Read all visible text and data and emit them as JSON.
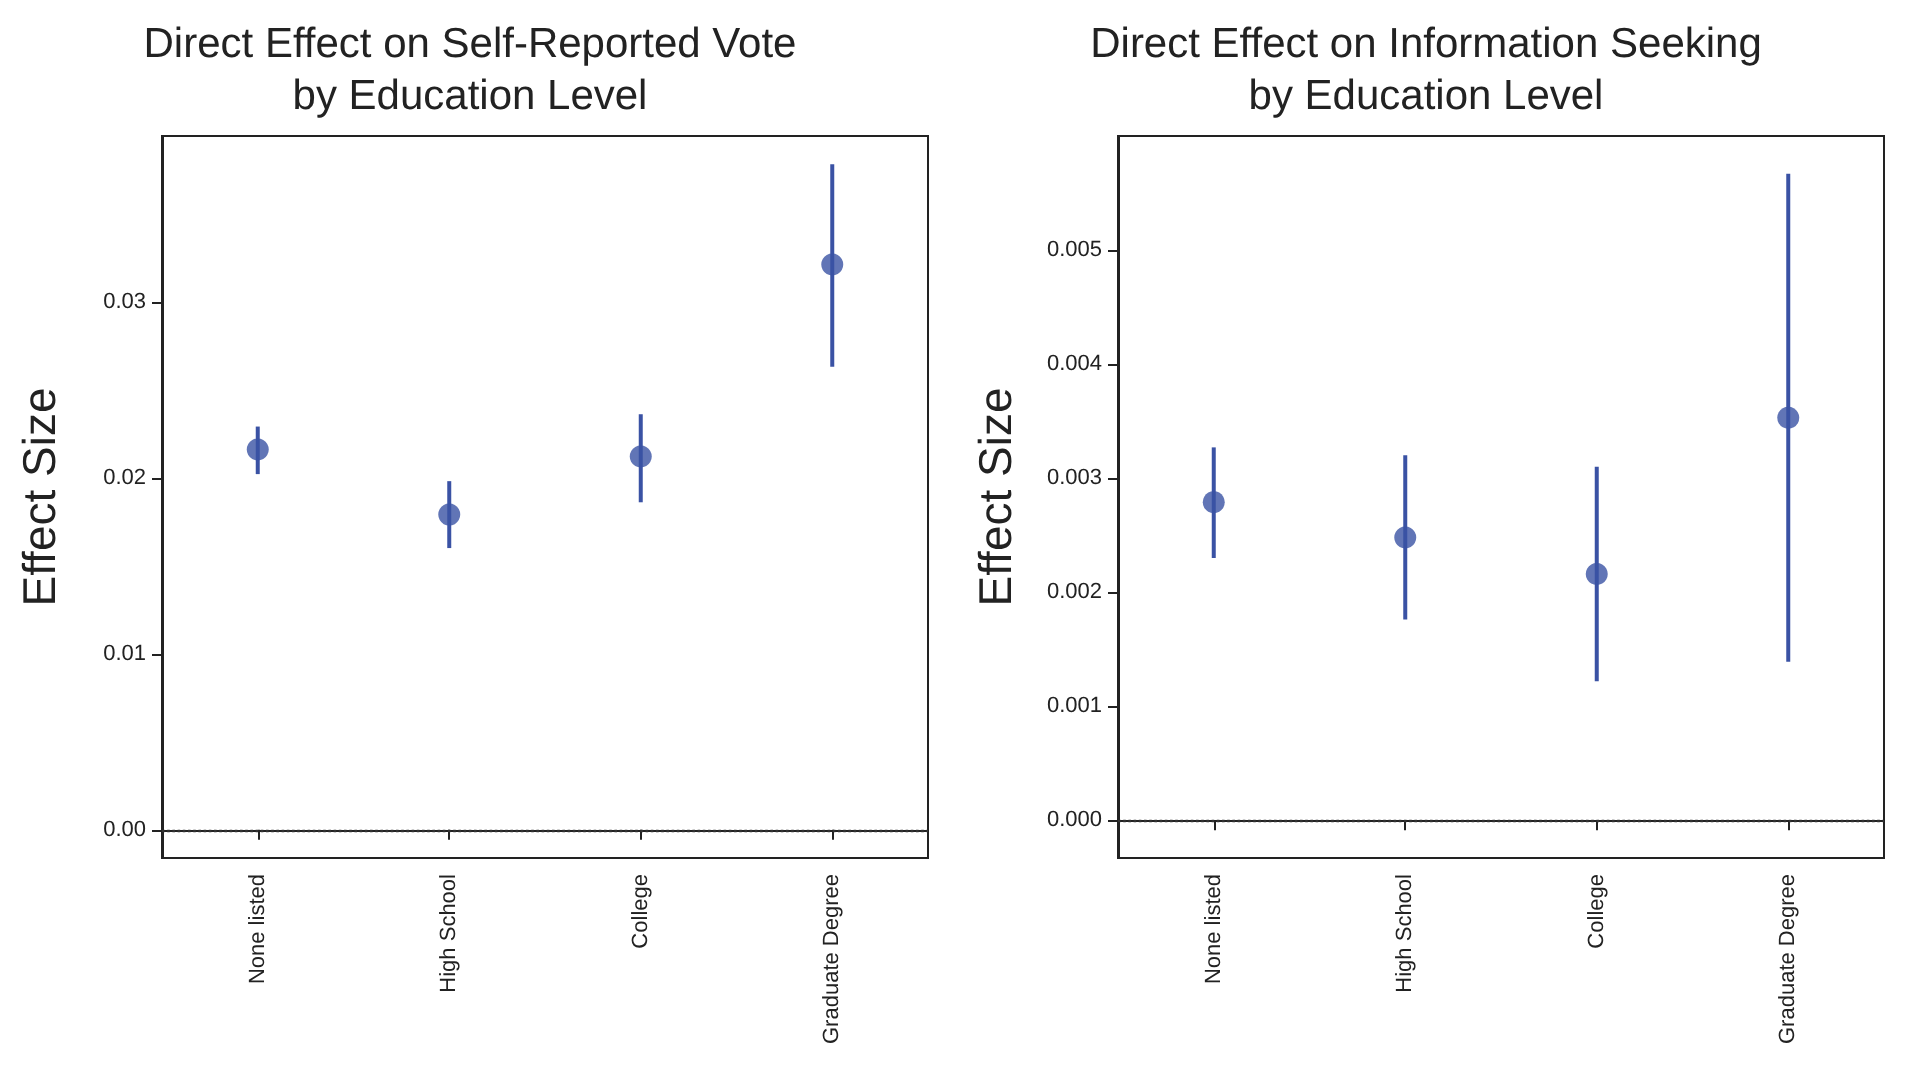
{
  "chart_data": [
    {
      "type": "scatter",
      "title": "Direct Effect on Self-Reported Vote\nby Education Level",
      "ylabel": "Effect Size",
      "categories": [
        "None listed",
        "High School",
        "College",
        "Graduate Degree"
      ],
      "color": "#3a52a4",
      "marker": "circle",
      "grid": false,
      "values": [
        0.0216,
        0.0179,
        0.0212,
        0.0321
      ],
      "errors": [
        [
          0.0202,
          0.0229
        ],
        [
          0.016,
          0.0198
        ],
        [
          0.0186,
          0.0236
        ],
        [
          0.0263,
          0.0378
        ]
      ],
      "ylim": [
        -0.0016,
        0.0394
      ],
      "yticks": [
        {
          "value": 0,
          "label": "0.00"
        },
        {
          "value": 0.01,
          "label": "0.01"
        },
        {
          "value": 0.02,
          "label": "0.02"
        },
        {
          "value": 0.03,
          "label": "0.03"
        }
      ],
      "ref_lines": [
        {
          "axis": "y",
          "value": 0,
          "label": null,
          "color": "#333333",
          "line_style": "dotted"
        }
      ]
    },
    {
      "type": "scatter",
      "title": "Direct Effect on Information Seeking\nby Education Level",
      "ylabel": "Effect Size",
      "categories": [
        "None listed",
        "High School",
        "College",
        "Graduate Degree"
      ],
      "color": "#3a52a4",
      "marker": "circle",
      "grid": false,
      "values": [
        0.00279,
        0.00248,
        0.00216,
        0.00353
      ],
      "errors": [
        [
          0.0023,
          0.00327
        ],
        [
          0.00176,
          0.0032
        ],
        [
          0.00122,
          0.0031
        ],
        [
          0.00139,
          0.00567
        ]
      ],
      "ylim": [
        -0.00033,
        0.006
      ],
      "yticks": [
        {
          "value": 0,
          "label": "0.000"
        },
        {
          "value": 0.001,
          "label": "0.001"
        },
        {
          "value": 0.002,
          "label": "0.002"
        },
        {
          "value": 0.003,
          "label": "0.003"
        },
        {
          "value": 0.004,
          "label": "0.004"
        },
        {
          "value": 0.005,
          "label": "0.005"
        }
      ],
      "ref_lines": [
        {
          "axis": "y",
          "value": 0,
          "label": null,
          "color": "#333333",
          "line_style": "dotted"
        }
      ]
    }
  ]
}
